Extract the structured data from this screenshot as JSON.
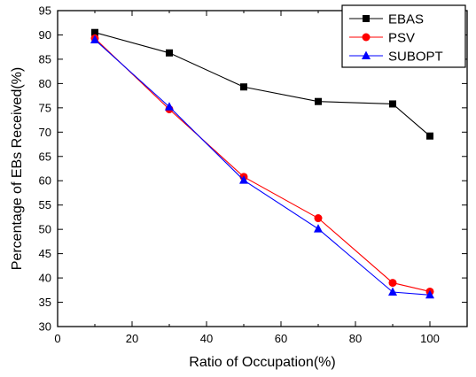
{
  "chart_data": {
    "type": "line",
    "xlabel": "Ratio of Occupation(%)",
    "ylabel": "Percentage of EBs Received(%)",
    "xlim": [
      0,
      110
    ],
    "ylim": [
      30,
      95
    ],
    "xticks": [
      0,
      20,
      40,
      60,
      80,
      100
    ],
    "yticks": [
      30,
      35,
      40,
      45,
      50,
      55,
      60,
      65,
      70,
      75,
      80,
      85,
      90,
      95
    ],
    "grid": false,
    "legend_position": "top-right",
    "series": [
      {
        "name": "EBAS",
        "color": "#000000",
        "marker": "square",
        "x": [
          10,
          30,
          50,
          70,
          90,
          100
        ],
        "y": [
          90.5,
          86.3,
          79.3,
          76.3,
          75.8,
          69.2
        ]
      },
      {
        "name": "PSV",
        "color": "#ff0000",
        "marker": "circle",
        "x": [
          10,
          30,
          50,
          70,
          90,
          100
        ],
        "y": [
          89.3,
          74.7,
          60.8,
          52.3,
          39.0,
          37.2
        ]
      },
      {
        "name": "SUBOPT",
        "color": "#0000ff",
        "marker": "triangle",
        "x": [
          10,
          30,
          50,
          70,
          90,
          100
        ],
        "y": [
          89.0,
          75.2,
          60.1,
          50.1,
          37.1,
          36.5
        ]
      }
    ]
  }
}
